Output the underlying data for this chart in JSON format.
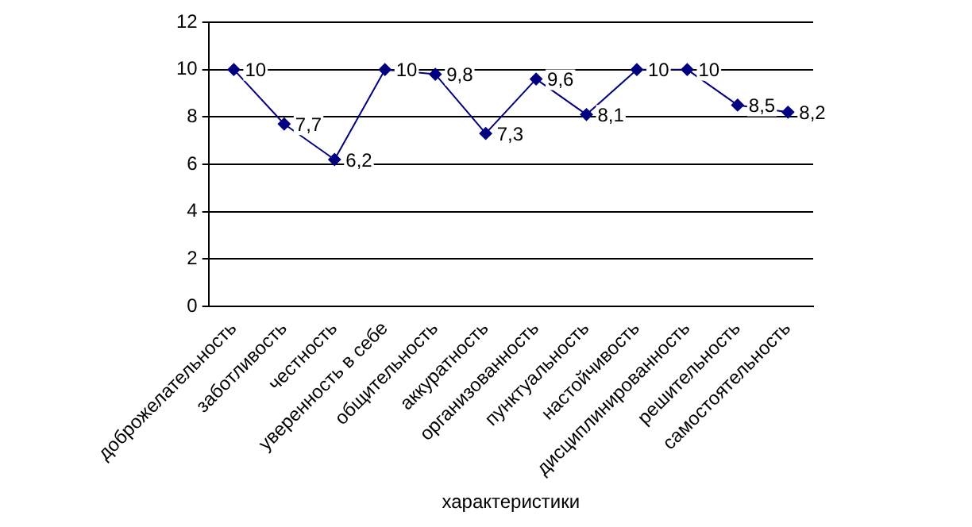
{
  "chart_data": {
    "type": "line",
    "xlabel": "характеристики",
    "categories": [
      "доброжелательность",
      "заботливость",
      "честность",
      "уверенность в себе",
      "общительность",
      "аккуратность",
      "организованность",
      "пунктуальность",
      "настойчивость",
      "дисциплинированность",
      "решительность",
      "самостоятельность"
    ],
    "series": [
      {
        "color": "#000080",
        "values": [
          10,
          7.7,
          6.2,
          10,
          9.8,
          7.3,
          9.6,
          8.1,
          10,
          10,
          8.5,
          8.2
        ],
        "value_labels": [
          "10",
          "7,7",
          "6,2",
          "10",
          "9,8",
          "7,3",
          "9,6",
          "8,1",
          "10",
          "10",
          "8,5",
          "8,2"
        ]
      }
    ],
    "ylim": [
      0,
      12
    ],
    "yticks": [
      0,
      2,
      4,
      6,
      8,
      10,
      12
    ],
    "grid": "y",
    "legend": false,
    "marker": "diamond",
    "line_style": "solid"
  }
}
